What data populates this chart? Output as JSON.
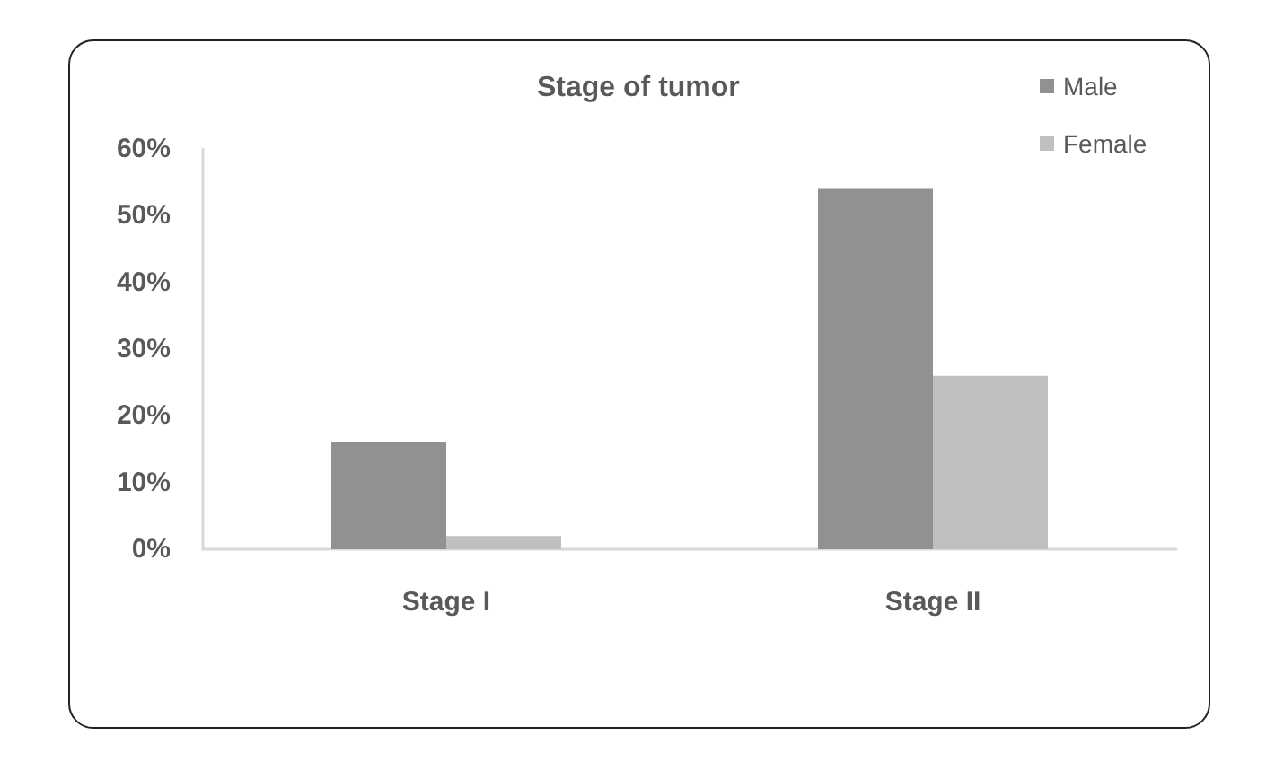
{
  "chart_data": {
    "type": "bar",
    "title": "Stage of tumor",
    "categories": [
      "Stage I",
      "Stage II"
    ],
    "series": [
      {
        "name": "Male",
        "color": "#919191",
        "values": [
          16,
          54
        ]
      },
      {
        "name": "Female",
        "color": "#bfbfbf",
        "values": [
          2,
          26
        ]
      }
    ],
    "ylim": [
      0,
      60
    ],
    "yticks": [
      {
        "value": 0,
        "label": "0%"
      },
      {
        "value": 10,
        "label": "10%"
      },
      {
        "value": 20,
        "label": "20%"
      },
      {
        "value": 30,
        "label": "30%"
      },
      {
        "value": 40,
        "label": "40%"
      },
      {
        "value": 50,
        "label": "50%"
      },
      {
        "value": 60,
        "label": "60%"
      }
    ],
    "legend": "top right"
  }
}
